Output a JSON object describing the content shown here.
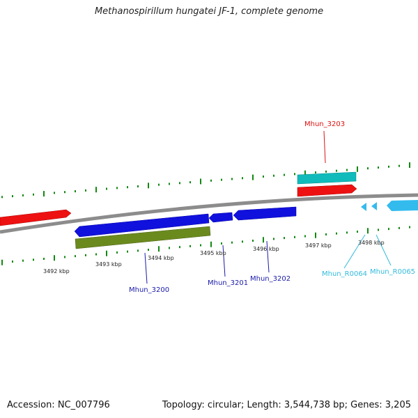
{
  "title": "Methanospirillum hungatei JF-1, complete genome",
  "accession": "Accession: NC_007796",
  "topology": "Topology: circular; Length: 3,544,738 bp; Genes: 3,205",
  "kbp_labels": [
    "3492 kbp",
    "3493 kbp",
    "3494 kbp",
    "3495 kbp",
    "3496 kbp",
    "3497 kbp",
    "3498 kbp"
  ],
  "genes": [
    {
      "name": "Mhun_3200",
      "color": "#1a1aaa"
    },
    {
      "name": "Mhun_3201",
      "color": "#1a1aaa"
    },
    {
      "name": "Mhun_3202",
      "color": "#1a1aaa"
    },
    {
      "name": "Mhun_3203",
      "color": "#dd1111"
    },
    {
      "name": "Mhun_R0064",
      "color": "#33bbdd"
    },
    {
      "name": "Mhun_R0065",
      "color": "#33bbdd"
    }
  ],
  "colors": {
    "backbone": "#8c8c8c",
    "tick": "#118811",
    "forward_cds": "#ee1111",
    "reverse_cds": "#1111dd",
    "gene_bar": "#6b8a1e",
    "rna_top": "#11bbbb",
    "rna_arrow": "#33bbee"
  }
}
